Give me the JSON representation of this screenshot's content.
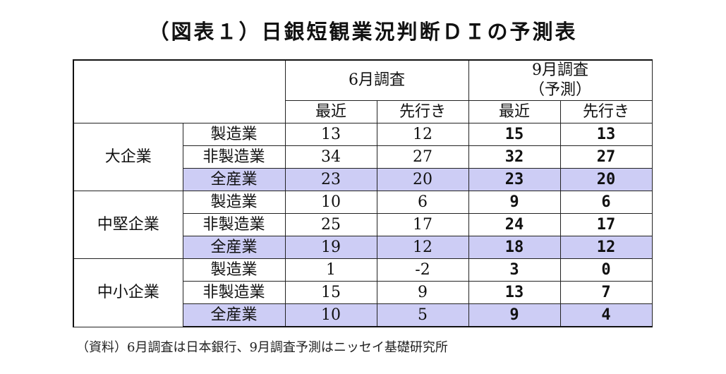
{
  "title": "（図表１）日銀短観業況判断ＤＩの予測表",
  "header": {
    "june_survey": "6月調査",
    "sept_survey_line1": "9月調査",
    "sept_survey_line2": "（予測）",
    "recent": "最近",
    "ahead": "先行き"
  },
  "groups": [
    {
      "label": "大企業",
      "rows": [
        {
          "industry": "製造業",
          "june_recent": "13",
          "june_ahead": "12",
          "sept_recent": "15",
          "sept_ahead": "13"
        },
        {
          "industry": "非製造業",
          "june_recent": "34",
          "june_ahead": "27",
          "sept_recent": "32",
          "sept_ahead": "27"
        },
        {
          "industry": "全産業",
          "june_recent": "23",
          "june_ahead": "20",
          "sept_recent": "23",
          "sept_ahead": "20"
        }
      ]
    },
    {
      "label": "中堅企業",
      "rows": [
        {
          "industry": "製造業",
          "june_recent": "10",
          "june_ahead": "6",
          "sept_recent": "9",
          "sept_ahead": "6"
        },
        {
          "industry": "非製造業",
          "june_recent": "25",
          "june_ahead": "17",
          "sept_recent": "24",
          "sept_ahead": "17"
        },
        {
          "industry": "全産業",
          "june_recent": "19",
          "june_ahead": "12",
          "sept_recent": "18",
          "sept_ahead": "12"
        }
      ]
    },
    {
      "label": "中小企業",
      "rows": [
        {
          "industry": "製造業",
          "june_recent": "1",
          "june_ahead": "-2",
          "sept_recent": "3",
          "sept_ahead": "0"
        },
        {
          "industry": "非製造業",
          "june_recent": "15",
          "june_ahead": "9",
          "sept_recent": "13",
          "sept_ahead": "7"
        },
        {
          "industry": "全産業",
          "june_recent": "10",
          "june_ahead": "5",
          "sept_recent": "9",
          "sept_ahead": "4"
        }
      ]
    }
  ],
  "source": "（資料）6月調査は日本銀行、9月調査予測はニッセイ基礎研究所",
  "colors": {
    "highlight_row": "#cdcdf5",
    "border": "#222222"
  }
}
